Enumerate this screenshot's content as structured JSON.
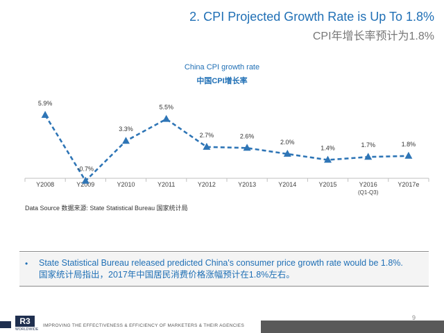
{
  "header": {
    "title_en": "2. CPI Projected Growth Rate is Up To 1.8%",
    "title_cn": "CPI年增长率预计为1.8%"
  },
  "chart_data": {
    "type": "line",
    "title": "China CPI growth rate",
    "subtitle": "中国CPI增长率",
    "categories": [
      "Y2008",
      "Y2009",
      "Y2010",
      "Y2011",
      "Y2012",
      "Y2013",
      "Y2014",
      "Y2015",
      "Y2016 (Q1-Q3)",
      "Y2017e"
    ],
    "category_lines": [
      [
        "Y2008"
      ],
      [
        "Y2009"
      ],
      [
        "Y2010"
      ],
      [
        "Y2011"
      ],
      [
        "Y2012"
      ],
      [
        "Y2013"
      ],
      [
        "Y2014"
      ],
      [
        "Y2015"
      ],
      [
        "Y2016",
        "(Q1-Q3)"
      ],
      [
        "Y2017e"
      ]
    ],
    "series": [
      {
        "values": [
          5.9,
          -0.7,
          3.3,
          5.5,
          2.7,
          2.6,
          2.0,
          1.4,
          1.7,
          1.8
        ],
        "labels": [
          "5.9%",
          "-0.7%",
          "3.3%",
          "5.5%",
          "2.7%",
          "2.6%",
          "2.0%",
          "1.4%",
          "1.7%",
          "1.8%"
        ],
        "color": "#2e75b6",
        "line_style": "dashed",
        "marker": "triangle"
      }
    ],
    "ylim": [
      -1,
      7
    ],
    "xlabel": "",
    "ylabel": "",
    "grid": false,
    "legend": "none",
    "axis_color": "#bfbfbf"
  },
  "source_note": "Data Source 数据来源: State Statistical Bureau 国家统计局",
  "callout": {
    "bullet": "•",
    "text_en": "State Statistical Bureau released predicted China's consumer price growth rate would be 1.8%.",
    "text_cn": "国家统计局指出，2017年中国居民消费价格涨幅预计在1.8%左右。"
  },
  "footer": {
    "page_number": "9",
    "logo_text": "R3",
    "logo_subtext": "WORLDWIDE",
    "tagline": "IMPROVING THE EFFECTIVENESS & EFFICIENCY OF MARKETERS & THEIR AGENCIES",
    "bar_color": "#595959",
    "brand_color": "#1f2f4f"
  }
}
